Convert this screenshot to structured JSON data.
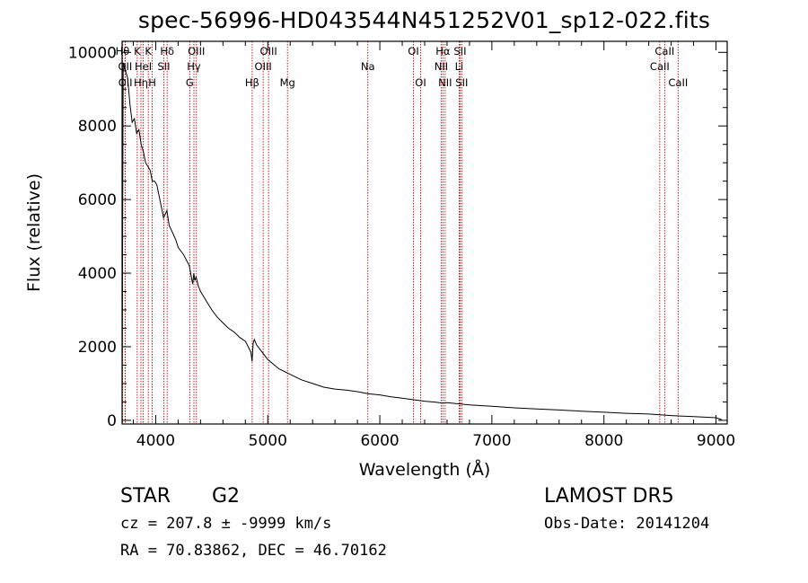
{
  "header": {
    "title": "spec-56996-HD043544N451252V01_sp12-022.fits"
  },
  "info": {
    "object_class": "STAR",
    "object_subclass": "G2",
    "survey": "LAMOST  DR5",
    "cz": "cz = 207.8 ± -9999 km/s",
    "obs_date": "Obs-Date: 20141204",
    "radec": "RA =  70.83862, DEC =  46.70162"
  },
  "colors": {
    "spectrum": "#000000",
    "line_markers": "#cc0000",
    "axes": "#000000"
  },
  "chart_data": {
    "type": "line",
    "title": "spec-56996-HD043544N451252V01_sp12-022.fits",
    "xlabel": "Wavelength (Å)",
    "ylabel": "Flux (relative)",
    "xlim": [
      3700,
      9100
    ],
    "ylim": [
      -100,
      10300
    ],
    "xticks": [
      4000,
      5000,
      6000,
      7000,
      8000,
      9000
    ],
    "yticks": [
      0,
      2000,
      4000,
      6000,
      8000,
      10000
    ],
    "grid": false,
    "series": [
      {
        "x": [
          3700,
          3710,
          3730,
          3750,
          3770,
          3790,
          3810,
          3830,
          3850,
          3870,
          3890,
          3910,
          3930,
          3950,
          3970,
          3990,
          4010,
          4030,
          4050,
          4070,
          4100,
          4120,
          4150,
          4180,
          4200,
          4250,
          4300,
          4330,
          4340,
          4350,
          4360,
          4380,
          4400,
          4450,
          4500,
          4550,
          4600,
          4650,
          4700,
          4750,
          4800,
          4850,
          4860,
          4870,
          4880,
          4900,
          4950,
          5000,
          5100,
          5200,
          5300,
          5400,
          5500,
          5600,
          5700,
          5800,
          5900,
          6000,
          6100,
          6200,
          6300,
          6400,
          6500,
          6563,
          6600,
          6700,
          6800,
          7000,
          7200,
          7400,
          7600,
          7800,
          8000,
          8200,
          8400,
          8600,
          8800,
          9000,
          9050
        ],
        "y": [
          500,
          9700,
          9500,
          9300,
          8600,
          8100,
          8200,
          7800,
          7900,
          7500,
          7300,
          7000,
          6900,
          6800,
          6500,
          6500,
          6400,
          6100,
          5800,
          5500,
          5700,
          5300,
          5100,
          4900,
          4700,
          4500,
          4200,
          3700,
          4000,
          3800,
          3900,
          3650,
          3500,
          3250,
          3000,
          2800,
          2650,
          2500,
          2400,
          2250,
          2150,
          1850,
          1600,
          2100,
          2200,
          2050,
          1850,
          1650,
          1400,
          1250,
          1100,
          1000,
          900,
          850,
          820,
          780,
          720,
          690,
          640,
          600,
          560,
          520,
          490,
          470,
          480,
          450,
          420,
          380,
          340,
          310,
          280,
          250,
          220,
          190,
          170,
          130,
          100,
          70,
          20
        ]
      }
    ],
    "lines": [
      {
        "w": 3704,
        "label": "Hθ",
        "row": 1
      },
      {
        "w": 3727,
        "label": "OII",
        "row": 2
      },
      {
        "w": 3729,
        "label": "OII",
        "row": 3
      },
      {
        "w": 3835,
        "label": "K",
        "row": 1
      },
      {
        "w": 3868,
        "label": "Hη",
        "row": 3
      },
      {
        "w": 3889,
        "label": "HeI",
        "row": 2
      },
      {
        "w": 3934,
        "label": "K",
        "row": 1
      },
      {
        "w": 3969,
        "label": "H",
        "row": 3
      },
      {
        "w": 4072,
        "label": "SII",
        "row": 2
      },
      {
        "w": 4102,
        "label": "Hδ",
        "row": 1
      },
      {
        "w": 4304,
        "label": "G",
        "row": 3
      },
      {
        "w": 4341,
        "label": "Hγ",
        "row": 2
      },
      {
        "w": 4363,
        "label": "OIII",
        "row": 1
      },
      {
        "w": 4861,
        "label": "Hβ",
        "row": 3
      },
      {
        "w": 4959,
        "label": "OIII",
        "row": 2
      },
      {
        "w": 5007,
        "label": "OIII",
        "row": 1
      },
      {
        "w": 5176,
        "label": "Mg",
        "row": 3
      },
      {
        "w": 5893,
        "label": "Na",
        "row": 2
      },
      {
        "w": 6300,
        "label": "OI",
        "row": 1
      },
      {
        "w": 6364,
        "label": "OI",
        "row": 3
      },
      {
        "w": 6548,
        "label": "NII",
        "row": 2
      },
      {
        "w": 6563,
        "label": "Hα",
        "row": 1
      },
      {
        "w": 6583,
        "label": "NII",
        "row": 3
      },
      {
        "w": 6708,
        "label": "Li",
        "row": 2
      },
      {
        "w": 6716,
        "label": "SII",
        "row": 1
      },
      {
        "w": 6731,
        "label": "SII",
        "row": 3
      },
      {
        "w": 8498,
        "label": "CaII",
        "row": 2
      },
      {
        "w": 8542,
        "label": "CaII",
        "row": 1
      },
      {
        "w": 8662,
        "label": "CaII",
        "row": 3
      }
    ]
  }
}
